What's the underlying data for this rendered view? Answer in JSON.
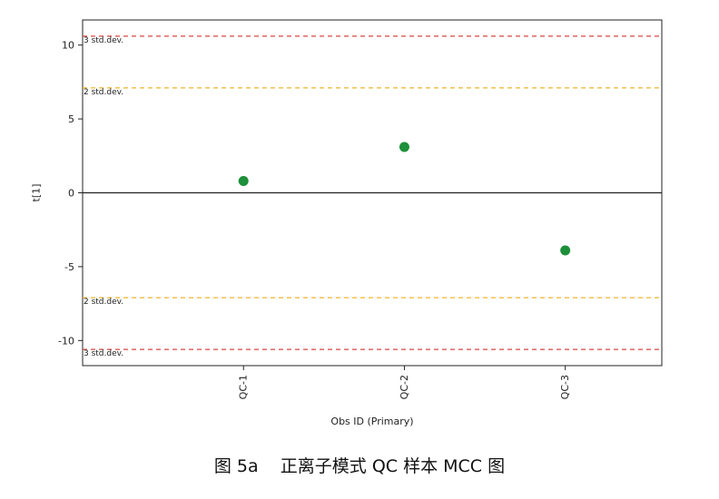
{
  "chart_data": {
    "type": "scatter",
    "categories": [
      "QC-1",
      "QC-2",
      "QC-3"
    ],
    "values": [
      0.8,
      3.1,
      -3.9
    ],
    "xlabel": "Obs ID (Primary)",
    "ylabel": "t[1]",
    "ylim": [
      -11.7,
      11.7
    ],
    "yticks": [
      10,
      5,
      0,
      -5,
      -10
    ],
    "point_color": "#1e8f3a",
    "reference_lines": [
      {
        "value": 10.6,
        "label": "3 std.dev.",
        "color": "#d9473f"
      },
      {
        "value": 7.1,
        "label": "2 std.dev.",
        "color": "#f0b429"
      },
      {
        "value": -7.1,
        "label": "2 std.dev.",
        "color": "#f0b429"
      },
      {
        "value": -10.6,
        "label": "3 std.dev.",
        "color": "#d9473f"
      }
    ]
  },
  "caption": "图 5a    正离子模式 QC 样本 MCC 图"
}
